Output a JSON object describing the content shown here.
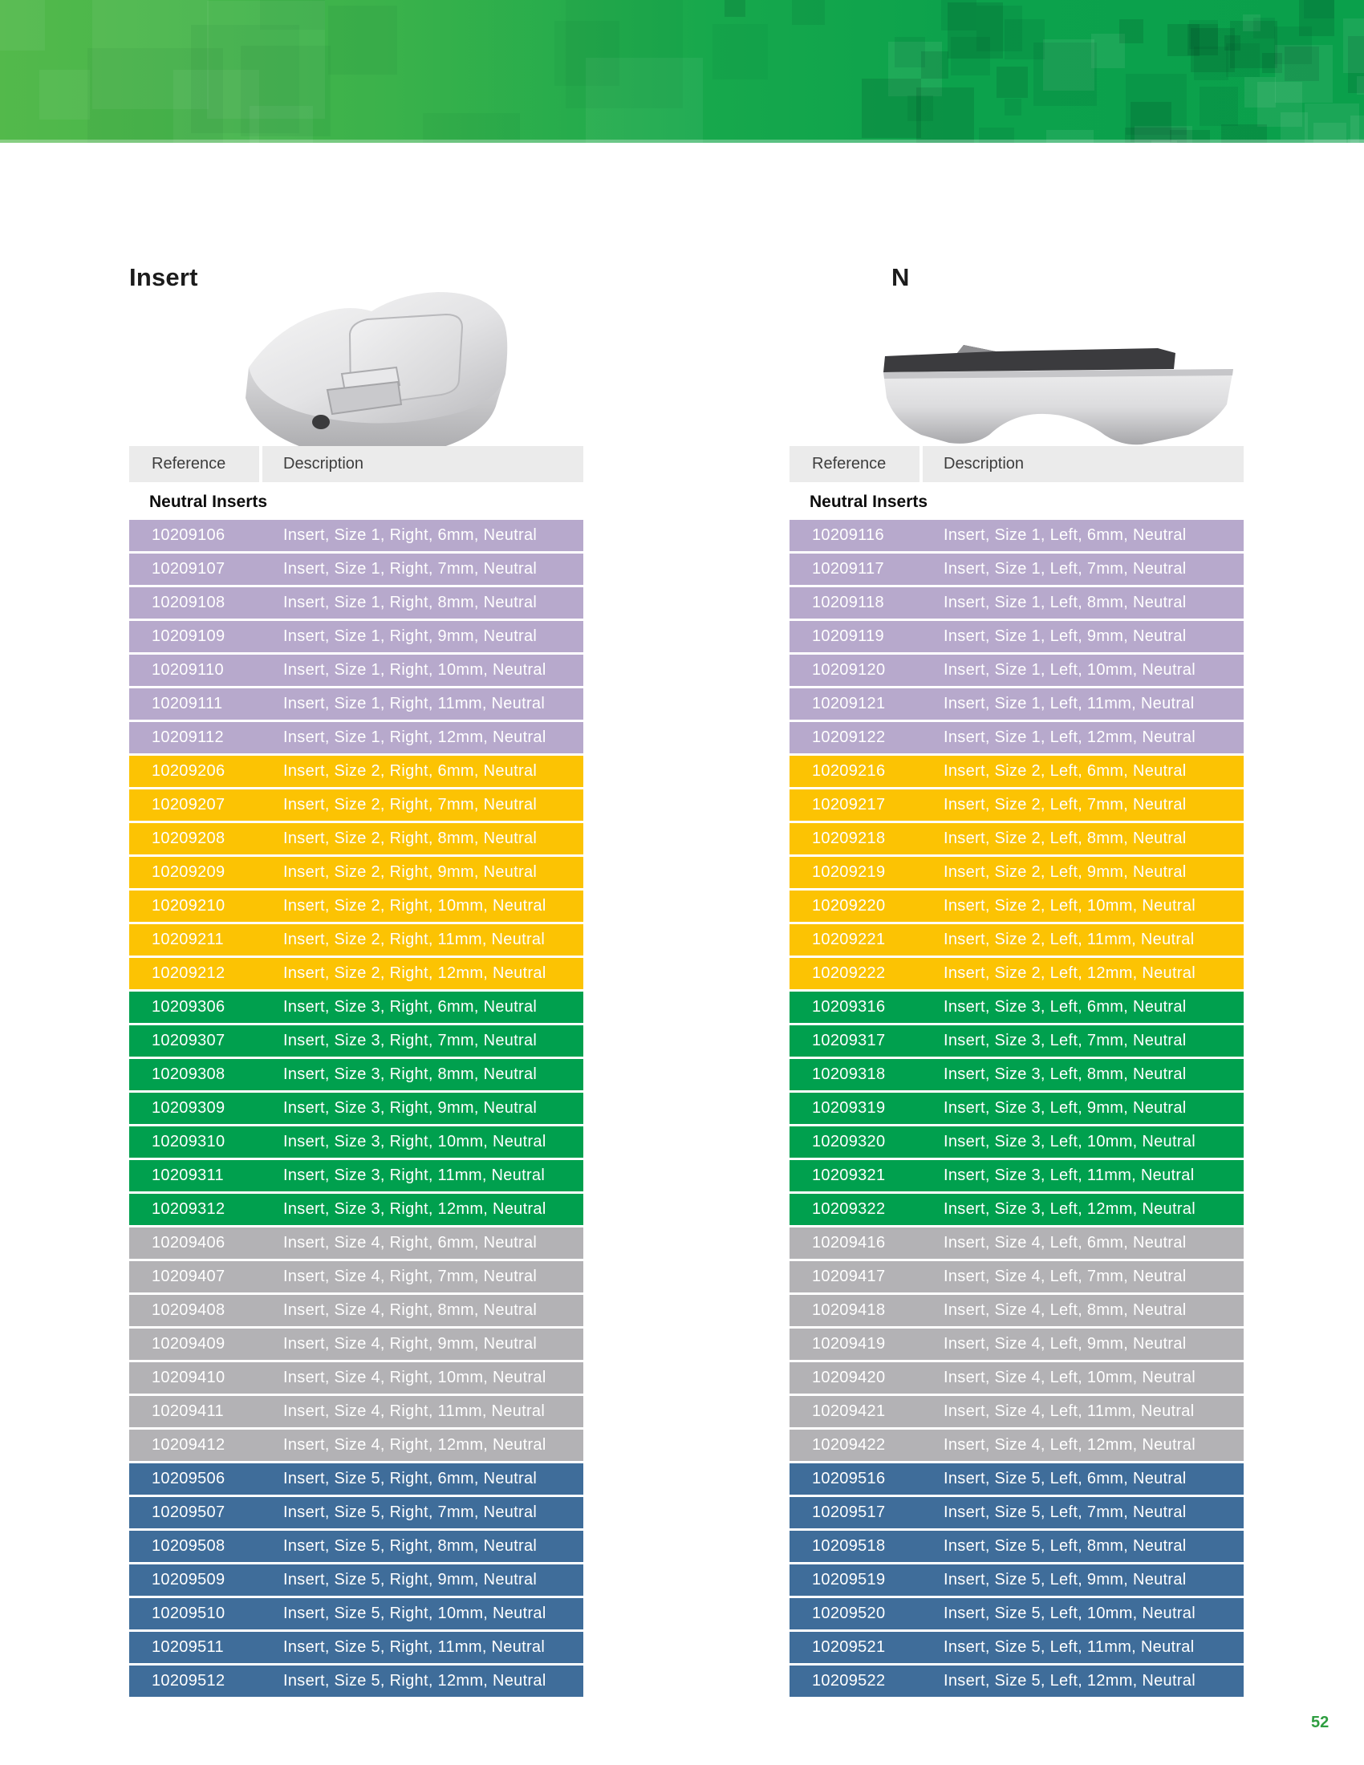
{
  "page": {
    "number": "52",
    "accent_green": "#0aa04b"
  },
  "left_section": {
    "title": "Insert",
    "table": {
      "columns": [
        "Reference",
        "Description"
      ],
      "group_label": "Neutral Inserts",
      "groups": [
        {
          "name": "size-1",
          "color": "#b7a9cc",
          "rows": [
            {
              "ref": "10209106",
              "desc": "Insert, Size 1, Right, 6mm, Neutral"
            },
            {
              "ref": "10209107",
              "desc": "Insert, Size 1, Right, 7mm, Neutral"
            },
            {
              "ref": "10209108",
              "desc": "Insert, Size 1, Right, 8mm, Neutral"
            },
            {
              "ref": "10209109",
              "desc": "Insert, Size 1, Right, 9mm, Neutral"
            },
            {
              "ref": "10209110",
              "desc": "Insert, Size 1, Right, 10mm, Neutral"
            },
            {
              "ref": "10209111",
              "desc": "Insert, Size 1, Right, 11mm, Neutral"
            },
            {
              "ref": "10209112",
              "desc": "Insert, Size 1, Right, 12mm, Neutral"
            }
          ]
        },
        {
          "name": "size-2",
          "color": "#fcc303",
          "rows": [
            {
              "ref": "10209206",
              "desc": "Insert, Size 2, Right, 6mm, Neutral"
            },
            {
              "ref": "10209207",
              "desc": "Insert, Size 2, Right, 7mm, Neutral"
            },
            {
              "ref": "10209208",
              "desc": "Insert, Size 2, Right, 8mm, Neutral"
            },
            {
              "ref": "10209209",
              "desc": "Insert, Size 2, Right, 9mm, Neutral"
            },
            {
              "ref": "10209210",
              "desc": "Insert, Size 2, Right, 10mm, Neutral"
            },
            {
              "ref": "10209211",
              "desc": "Insert, Size 2, Right, 11mm, Neutral"
            },
            {
              "ref": "10209212",
              "desc": "Insert, Size 2, Right, 12mm, Neutral"
            }
          ]
        },
        {
          "name": "size-3",
          "color": "#00a04e",
          "rows": [
            {
              "ref": "10209306",
              "desc": "Insert, Size 3, Right, 6mm, Neutral"
            },
            {
              "ref": "10209307",
              "desc": "Insert, Size 3, Right, 7mm, Neutral"
            },
            {
              "ref": "10209308",
              "desc": "Insert, Size 3, Right, 8mm, Neutral"
            },
            {
              "ref": "10209309",
              "desc": "Insert, Size 3, Right, 9mm, Neutral"
            },
            {
              "ref": "10209310",
              "desc": "Insert, Size 3, Right, 10mm, Neutral"
            },
            {
              "ref": "10209311",
              "desc": "Insert, Size 3, Right, 11mm, Neutral"
            },
            {
              "ref": "10209312",
              "desc": "Insert, Size 3, Right, 12mm, Neutral"
            }
          ]
        },
        {
          "name": "size-4",
          "color": "#b3b2b5",
          "rows": [
            {
              "ref": "10209406",
              "desc": "Insert, Size 4, Right, 6mm, Neutral"
            },
            {
              "ref": "10209407",
              "desc": "Insert, Size 4, Right, 7mm, Neutral"
            },
            {
              "ref": "10209408",
              "desc": "Insert, Size 4, Right, 8mm, Neutral"
            },
            {
              "ref": "10209409",
              "desc": "Insert, Size 4, Right, 9mm, Neutral"
            },
            {
              "ref": "10209410",
              "desc": "Insert, Size 4, Right, 10mm, Neutral"
            },
            {
              "ref": "10209411",
              "desc": "Insert, Size 4, Right, 11mm, Neutral"
            },
            {
              "ref": "10209412",
              "desc": "Insert, Size 4, Right, 12mm, Neutral"
            }
          ]
        },
        {
          "name": "size-5",
          "color": "#3f6d9a",
          "rows": [
            {
              "ref": "10209506",
              "desc": "Insert, Size 5, Right, 6mm, Neutral"
            },
            {
              "ref": "10209507",
              "desc": "Insert, Size 5, Right, 7mm, Neutral"
            },
            {
              "ref": "10209508",
              "desc": "Insert, Size 5, Right, 8mm, Neutral"
            },
            {
              "ref": "10209509",
              "desc": "Insert, Size 5, Right, 9mm, Neutral"
            },
            {
              "ref": "10209510",
              "desc": "Insert, Size 5, Right, 10mm, Neutral"
            },
            {
              "ref": "10209511",
              "desc": "Insert, Size 5, Right, 11mm, Neutral"
            },
            {
              "ref": "10209512",
              "desc": "Insert, Size 5, Right, 12mm, Neutral"
            }
          ]
        }
      ]
    }
  },
  "right_section": {
    "title": "N",
    "table": {
      "columns": [
        "Reference",
        "Description"
      ],
      "group_label": "Neutral Inserts",
      "groups": [
        {
          "name": "size-1",
          "color": "#b7a9cc",
          "rows": [
            {
              "ref": "10209116",
              "desc": "Insert, Size 1, Left, 6mm, Neutral"
            },
            {
              "ref": "10209117",
              "desc": "Insert, Size 1, Left, 7mm, Neutral"
            },
            {
              "ref": "10209118",
              "desc": "Insert, Size 1, Left, 8mm, Neutral"
            },
            {
              "ref": "10209119",
              "desc": "Insert, Size 1, Left, 9mm, Neutral"
            },
            {
              "ref": "10209120",
              "desc": "Insert, Size 1, Left, 10mm, Neutral"
            },
            {
              "ref": "10209121",
              "desc": "Insert, Size 1, Left, 11mm, Neutral"
            },
            {
              "ref": "10209122",
              "desc": "Insert, Size 1, Left, 12mm, Neutral"
            }
          ]
        },
        {
          "name": "size-2",
          "color": "#fcc303",
          "rows": [
            {
              "ref": "10209216",
              "desc": "Insert, Size 2, Left, 6mm, Neutral"
            },
            {
              "ref": "10209217",
              "desc": "Insert, Size 2, Left, 7mm, Neutral"
            },
            {
              "ref": "10209218",
              "desc": "Insert, Size 2, Left, 8mm, Neutral"
            },
            {
              "ref": "10209219",
              "desc": "Insert, Size 2, Left, 9mm, Neutral"
            },
            {
              "ref": "10209220",
              "desc": "Insert, Size 2, Left, 10mm, Neutral"
            },
            {
              "ref": "10209221",
              "desc": "Insert, Size 2, Left, 11mm, Neutral"
            },
            {
              "ref": "10209222",
              "desc": "Insert, Size 2, Left, 12mm, Neutral"
            }
          ]
        },
        {
          "name": "size-3",
          "color": "#00a04e",
          "rows": [
            {
              "ref": "10209316",
              "desc": "Insert, Size 3, Left, 6mm, Neutral"
            },
            {
              "ref": "10209317",
              "desc": "Insert, Size 3, Left, 7mm, Neutral"
            },
            {
              "ref": "10209318",
              "desc": "Insert, Size 3, Left, 8mm, Neutral"
            },
            {
              "ref": "10209319",
              "desc": "Insert, Size 3, Left, 9mm, Neutral"
            },
            {
              "ref": "10209320",
              "desc": "Insert, Size 3, Left, 10mm, Neutral"
            },
            {
              "ref": "10209321",
              "desc": "Insert, Size 3, Left, 11mm, Neutral"
            },
            {
              "ref": "10209322",
              "desc": "Insert, Size 3, Left, 12mm, Neutral"
            }
          ]
        },
        {
          "name": "size-4",
          "color": "#b3b2b5",
          "rows": [
            {
              "ref": "10209416",
              "desc": "Insert, Size 4, Left, 6mm, Neutral"
            },
            {
              "ref": "10209417",
              "desc": "Insert, Size 4, Left, 7mm, Neutral"
            },
            {
              "ref": "10209418",
              "desc": "Insert, Size 4, Left, 8mm, Neutral"
            },
            {
              "ref": "10209419",
              "desc": "Insert, Size 4, Left, 9mm, Neutral"
            },
            {
              "ref": "10209420",
              "desc": "Insert, Size 4, Left, 10mm, Neutral"
            },
            {
              "ref": "10209421",
              "desc": "Insert, Size 4, Left, 11mm, Neutral"
            },
            {
              "ref": "10209422",
              "desc": "Insert, Size 4, Left, 12mm, Neutral"
            }
          ]
        },
        {
          "name": "size-5",
          "color": "#3f6d9a",
          "rows": [
            {
              "ref": "10209516",
              "desc": "Insert, Size 5, Left, 6mm, Neutral"
            },
            {
              "ref": "10209517",
              "desc": "Insert, Size 5, Left, 7mm, Neutral"
            },
            {
              "ref": "10209518",
              "desc": "Insert, Size 5, Left, 8mm, Neutral"
            },
            {
              "ref": "10209519",
              "desc": "Insert, Size 5, Left, 9mm, Neutral"
            },
            {
              "ref": "10209520",
              "desc": "Insert, Size 5, Left, 10mm, Neutral"
            },
            {
              "ref": "10209521",
              "desc": "Insert, Size 5, Left, 11mm, Neutral"
            },
            {
              "ref": "10209522",
              "desc": "Insert, Size 5, Left, 12mm, Neutral"
            }
          ]
        }
      ]
    }
  }
}
